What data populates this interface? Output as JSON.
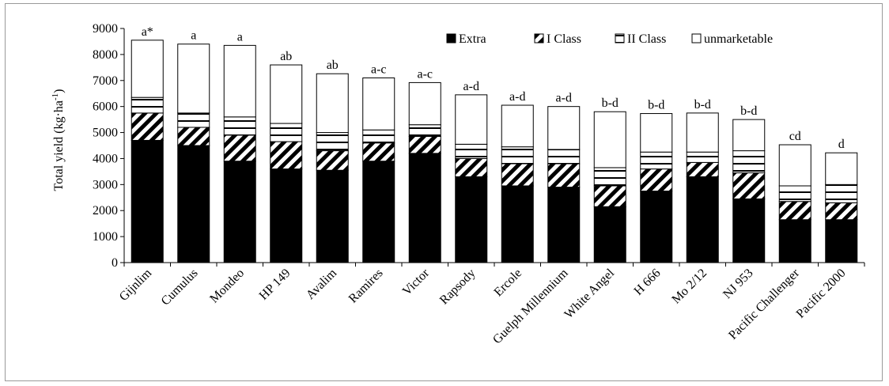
{
  "chart_data": {
    "type": "bar",
    "stacked": true,
    "ylabel_main": "Total yield (kg·ha",
    "ylabel_sup": "-1",
    "ylabel_close": ")",
    "ylim": [
      0,
      9000
    ],
    "yticks": [
      0,
      1000,
      2000,
      3000,
      4000,
      5000,
      6000,
      7000,
      8000,
      9000
    ],
    "grid": false,
    "legend_position": "top-right",
    "categories": [
      "Gijnlim",
      "Cumulus",
      "Mondeo",
      "HP 149",
      "Avalim",
      "Ramires",
      "Victor",
      "Rapsody",
      "Ercole",
      "Guelph Millennium",
      "White Angel",
      "H 666",
      "Mo 2/12",
      "NJ 953",
      "Pacific Challenger",
      "Pacific 2000"
    ],
    "significance": [
      "a*",
      "a",
      "a",
      "ab",
      "ab",
      "a-c",
      "a-c",
      "a-d",
      "a-d",
      "a-d",
      "b-d",
      "b-d",
      "b-d",
      "b-d",
      "cd",
      "d"
    ],
    "series": [
      {
        "name": "Extra",
        "pattern": "solid",
        "values": [
          4700,
          4500,
          3900,
          3600,
          3550,
          3900,
          4200,
          3300,
          2950,
          2900,
          2150,
          2750,
          3300,
          2450,
          1650,
          1650
        ]
      },
      {
        "name": "I Class",
        "pattern": "diagonal",
        "values": [
          1050,
          700,
          1000,
          1050,
          750,
          700,
          650,
          700,
          850,
          900,
          800,
          850,
          550,
          1000,
          700,
          650
        ]
      },
      {
        "name": "II Class",
        "pattern": "horizontal",
        "values": [
          600,
          550,
          700,
          700,
          700,
          500,
          450,
          550,
          650,
          550,
          700,
          650,
          400,
          850,
          600,
          700
        ]
      },
      {
        "name": "unmarketable",
        "pattern": "empty",
        "values": [
          2200,
          2650,
          2750,
          2250,
          2260,
          2000,
          1620,
          1900,
          1600,
          1650,
          2150,
          1480,
          1500,
          1200,
          1580,
          1220
        ]
      }
    ]
  }
}
